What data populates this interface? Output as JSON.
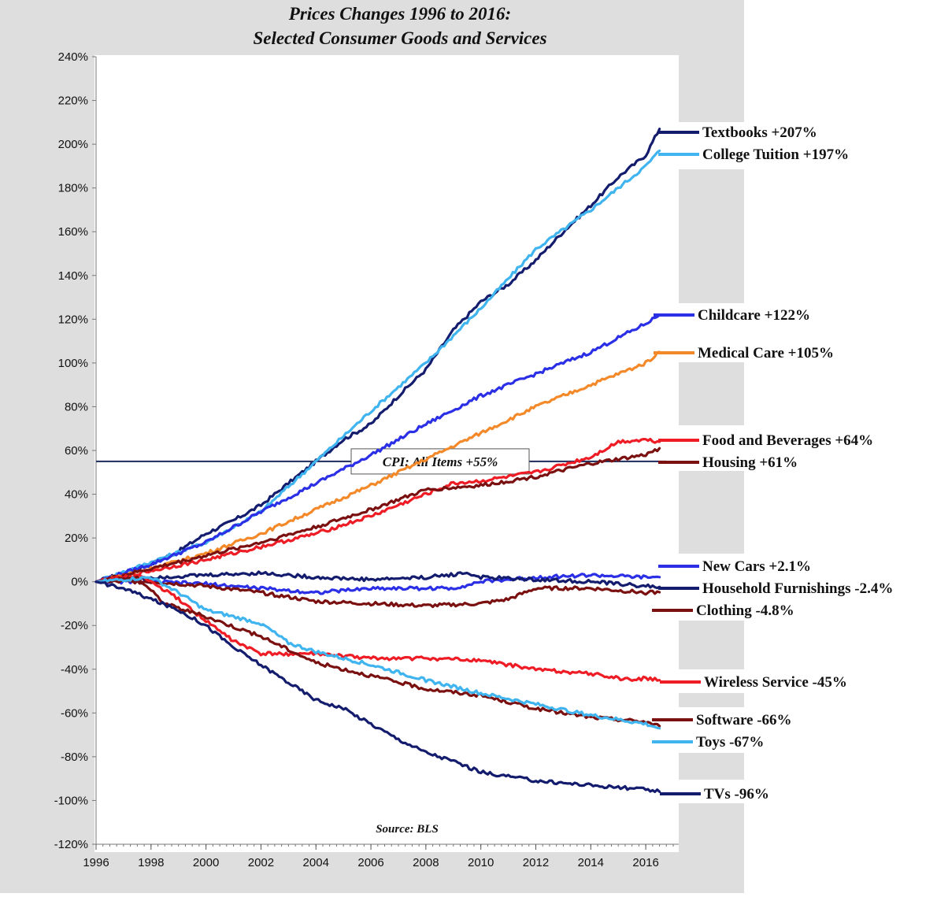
{
  "chart_data": {
    "type": "line",
    "title": "Prices Changes 1996 to 2016:",
    "subtitle": "Selected Consumer Goods and Services",
    "source": "Source: BLS",
    "xlabel": "",
    "ylabel": "",
    "xlim": [
      1996,
      2017.2
    ],
    "ylim": [
      -120,
      240
    ],
    "x_ticks": [
      1996,
      1998,
      2000,
      2002,
      2004,
      2006,
      2008,
      2010,
      2012,
      2014,
      2016
    ],
    "y_ticks": [
      -120,
      -100,
      -80,
      -60,
      -40,
      -20,
      0,
      20,
      40,
      60,
      80,
      100,
      120,
      140,
      160,
      180,
      200,
      220,
      240
    ],
    "grid": false,
    "legend_placement": "right",
    "reference_line": {
      "label": "CPI: All Items +55%",
      "value": 55,
      "color": "#1a2a5a"
    },
    "series": [
      {
        "name": "Textbooks +207%",
        "color": "#141c6e",
        "x": [
          1996,
          1997,
          1998,
          1999,
          2000,
          2001,
          2002,
          2003,
          2004,
          2005,
          2006,
          2007,
          2008,
          2009,
          2010,
          2011,
          2012,
          2013,
          2014,
          2015,
          2016,
          2016.5
        ],
        "y": [
          0,
          4,
          8,
          14,
          22,
          28,
          35,
          45,
          55,
          65,
          72,
          85,
          97,
          115,
          128,
          136,
          147,
          160,
          172,
          185,
          195,
          207
        ]
      },
      {
        "name": "College Tuition +197%",
        "color": "#3fb4ef",
        "x": [
          1996,
          1998,
          2000,
          2002,
          2004,
          2006,
          2008,
          2010,
          2012,
          2014,
          2016,
          2016.5
        ],
        "y": [
          0,
          9,
          18,
          32,
          55,
          78,
          100,
          125,
          152,
          170,
          190,
          197
        ]
      },
      {
        "name": "Childcare +122%",
        "color": "#2b2fe6",
        "x": [
          1996,
          1998,
          2000,
          2002,
          2004,
          2006,
          2008,
          2010,
          2012,
          2014,
          2016,
          2016.5
        ],
        "y": [
          0,
          8,
          18,
          32,
          45,
          58,
          72,
          85,
          95,
          105,
          118,
          122
        ]
      },
      {
        "name": "Medical Care +105%",
        "color": "#f4892a",
        "x": [
          1996,
          1998,
          2000,
          2002,
          2004,
          2006,
          2008,
          2010,
          2012,
          2014,
          2016,
          2016.5
        ],
        "y": [
          0,
          6,
          13,
          22,
          33,
          44,
          56,
          68,
          80,
          90,
          100,
          105
        ]
      },
      {
        "name": "Food and Beverages +64%",
        "color": "#ee1c25",
        "x": [
          1996,
          1998,
          2000,
          2002,
          2004,
          2006,
          2008,
          2009,
          2010,
          2012,
          2014,
          2015,
          2016,
          2016.5
        ],
        "y": [
          0,
          5,
          10,
          16,
          22,
          30,
          40,
          45,
          46,
          50,
          57,
          64,
          65,
          64
        ]
      },
      {
        "name": "Housing +61%",
        "color": "#7a1010",
        "x": [
          1996,
          1998,
          2000,
          2002,
          2004,
          2006,
          2008,
          2010,
          2012,
          2014,
          2016,
          2016.5
        ],
        "y": [
          0,
          6,
          12,
          18,
          25,
          33,
          42,
          44,
          48,
          54,
          58,
          61
        ]
      },
      {
        "name": "New Cars +2.1%",
        "color": "#2b2fe6",
        "x": [
          1996,
          1998,
          2000,
          2002,
          2004,
          2006,
          2008,
          2009,
          2010,
          2012,
          2014,
          2016,
          2016.5
        ],
        "y": [
          0,
          0,
          -1,
          -3,
          -5,
          -3,
          -3,
          -3,
          0,
          2,
          3,
          2,
          2.1
        ]
      },
      {
        "name": "Household Furnishings -2.4%",
        "color": "#141c6e",
        "x": [
          1996,
          1998,
          2000,
          2002,
          2004,
          2006,
          2008,
          2009.5,
          2010,
          2012,
          2014,
          2016,
          2016.5
        ],
        "y": [
          0,
          2,
          3,
          4,
          2,
          1,
          2,
          4,
          2,
          1,
          0,
          -2,
          -2.4
        ]
      },
      {
        "name": "Clothing -4.8%",
        "color": "#7a1010",
        "x": [
          1996,
          1998,
          2000,
          2002,
          2004,
          2006,
          2008,
          2010,
          2011,
          2012,
          2014,
          2016,
          2016.5
        ],
        "y": [
          0,
          0,
          -2,
          -5,
          -9,
          -10,
          -11,
          -10,
          -8,
          -3,
          -3,
          -5,
          -4.8
        ]
      },
      {
        "name": "Wireless Service -45%",
        "color": "#ee1c25",
        "x": [
          1996,
          1997.5,
          1998,
          1999,
          2000,
          2001,
          2002,
          2004,
          2006,
          2008,
          2010,
          2012,
          2014,
          2015.5,
          2016,
          2016.5
        ],
        "y": [
          0,
          3,
          0,
          -8,
          -18,
          -27,
          -33,
          -33,
          -35,
          -35,
          -36,
          -40,
          -42,
          -45,
          -44,
          -45
        ]
      },
      {
        "name": "Software -66%",
        "color": "#7a1010",
        "x": [
          1996,
          1997.5,
          1998.5,
          2000,
          2002,
          2004,
          2006,
          2008,
          2010,
          2012,
          2014,
          2016,
          2016.5
        ],
        "y": [
          0,
          2,
          -10,
          -16,
          -25,
          -37,
          -43,
          -49,
          -52,
          -58,
          -62,
          -64,
          -66
        ]
      },
      {
        "name": "Toys -67%",
        "color": "#3fb4ef",
        "x": [
          1996,
          1998,
          1999,
          2000,
          2001,
          2002,
          2003,
          2004,
          2006,
          2008,
          2010,
          2012,
          2014,
          2016,
          2016.5
        ],
        "y": [
          0,
          2,
          -5,
          -13,
          -16,
          -19,
          -28,
          -32,
          -38,
          -45,
          -51,
          -56,
          -61,
          -65,
          -67
        ]
      },
      {
        "name": "TVs -96%",
        "color": "#141c6e",
        "x": [
          1996,
          1997,
          1998,
          1999,
          2000,
          2001,
          2002,
          2003,
          2004,
          2005,
          2006,
          2007,
          2008,
          2009,
          2010,
          2011,
          2012,
          2013,
          2014,
          2015,
          2016,
          2016.5
        ],
        "y": [
          0,
          -3,
          -8,
          -13,
          -20,
          -30,
          -38,
          -46,
          -54,
          -58,
          -65,
          -72,
          -78,
          -82,
          -87,
          -89,
          -91,
          -92,
          -93,
          -94,
          -95,
          -96
        ]
      }
    ]
  }
}
